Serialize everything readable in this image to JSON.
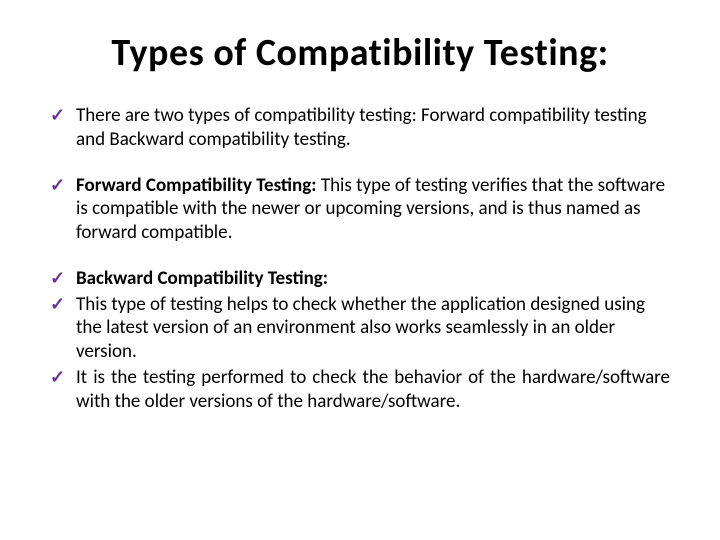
{
  "title": "Types of Compatibility Testing:",
  "checkmark_color": "#6b2fa0",
  "text_color": "#000000",
  "background_color": "#ffffff",
  "title_fontsize": 38,
  "body_fontsize": 19,
  "bullets": [
    {
      "lead": "",
      "text": "There are two types of compatibility testing: Forward compatibility testing and Backward compatibility testing.",
      "justify": false,
      "tight": false
    },
    {
      "lead": "Forward Compatibility Testing: ",
      "text": "This type of testing verifies that the software is compatible with the newer or upcoming versions, and is thus named as forward compatible.",
      "justify": false,
      "tight": false
    },
    {
      "lead": "Backward Compatibility Testing:",
      "text": "",
      "justify": false,
      "tight": true
    },
    {
      "lead": "",
      "text": "This type of testing helps to check whether the application designed using the latest version of an environment also works seamlessly in an older version.",
      "justify": false,
      "tight": true
    },
    {
      "lead": "",
      "text": "It is the testing performed to check the behavior of the hardware/software with the older versions of the hardware/software.",
      "justify": true,
      "tight": false
    }
  ]
}
